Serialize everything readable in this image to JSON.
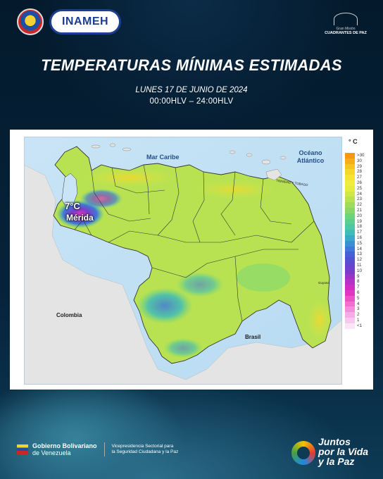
{
  "header": {
    "agency_logo_text": "INAMEH",
    "right_logo_line1": "Gran Misión",
    "right_logo_line2": "CUADRANTES DE PAZ"
  },
  "title": "TEMPERATURAS MÍNIMAS ESTIMADAS",
  "date": "LUNES 17 DE JUNIO DE 2024",
  "hours": "00:00HLV – 24:00HLV",
  "map": {
    "legend_unit": "° C",
    "legend": [
      {
        "label": ">30",
        "color": "#f39a12"
      },
      {
        "label": "30",
        "color": "#f5ad18"
      },
      {
        "label": "29",
        "color": "#f7c41e"
      },
      {
        "label": "28",
        "color": "#f8d628"
      },
      {
        "label": "27",
        "color": "#f7e432"
      },
      {
        "label": "26",
        "color": "#f2ec3c"
      },
      {
        "label": "25",
        "color": "#e4ec40"
      },
      {
        "label": "24",
        "color": "#cfe848"
      },
      {
        "label": "23",
        "color": "#b8e252"
      },
      {
        "label": "22",
        "color": "#9fdc5c"
      },
      {
        "label": "21",
        "color": "#86d868"
      },
      {
        "label": "20",
        "color": "#6ed47a"
      },
      {
        "label": "19",
        "color": "#5ccf8e"
      },
      {
        "label": "18",
        "color": "#4dc7a4"
      },
      {
        "label": "17",
        "color": "#40bdb8"
      },
      {
        "label": "16",
        "color": "#3aa8c9"
      },
      {
        "label": "15",
        "color": "#3b90d4"
      },
      {
        "label": "14",
        "color": "#3f78d8"
      },
      {
        "label": "13",
        "color": "#4661d6"
      },
      {
        "label": "12",
        "color": "#5550d0"
      },
      {
        "label": "11",
        "color": "#6744cc"
      },
      {
        "label": "10",
        "color": "#7d3cc8"
      },
      {
        "label": "9",
        "color": "#9836c6"
      },
      {
        "label": "8",
        "color": "#b432c4"
      },
      {
        "label": "7",
        "color": "#cf30c2"
      },
      {
        "label": "6",
        "color": "#e236c2"
      },
      {
        "label": "5",
        "color": "#eb52c8"
      },
      {
        "label": "4",
        "color": "#f070d2"
      },
      {
        "label": "3",
        "color": "#f48edc"
      },
      {
        "label": "2",
        "color": "#f7ace6"
      },
      {
        "label": "1",
        "color": "#f9c8ef"
      },
      {
        "label": "<1",
        "color": "#fbe4f6"
      }
    ],
    "labels": {
      "caribbean": "Mar Caribe",
      "atlantic": "Océano Atlántico",
      "colombia": "Colombia",
      "brasil": "Brasil",
      "trinidad": "TRINIDAD Y TOBAGO",
      "guyana": "Guyana"
    },
    "alert_temp": "7°C",
    "alert_place": "Mérida"
  },
  "footer": {
    "gov_line1_bold": "Gobierno Bolivariano",
    "gov_line2": "de Venezuela",
    "vice_line1": "Vicepresidencia Sectorial para",
    "vice_line2": "la Seguridad Ciudadana y la Paz",
    "juntos_line1": "Juntos",
    "juntos_line2": "por la Vida",
    "juntos_line3": "y la Paz"
  }
}
